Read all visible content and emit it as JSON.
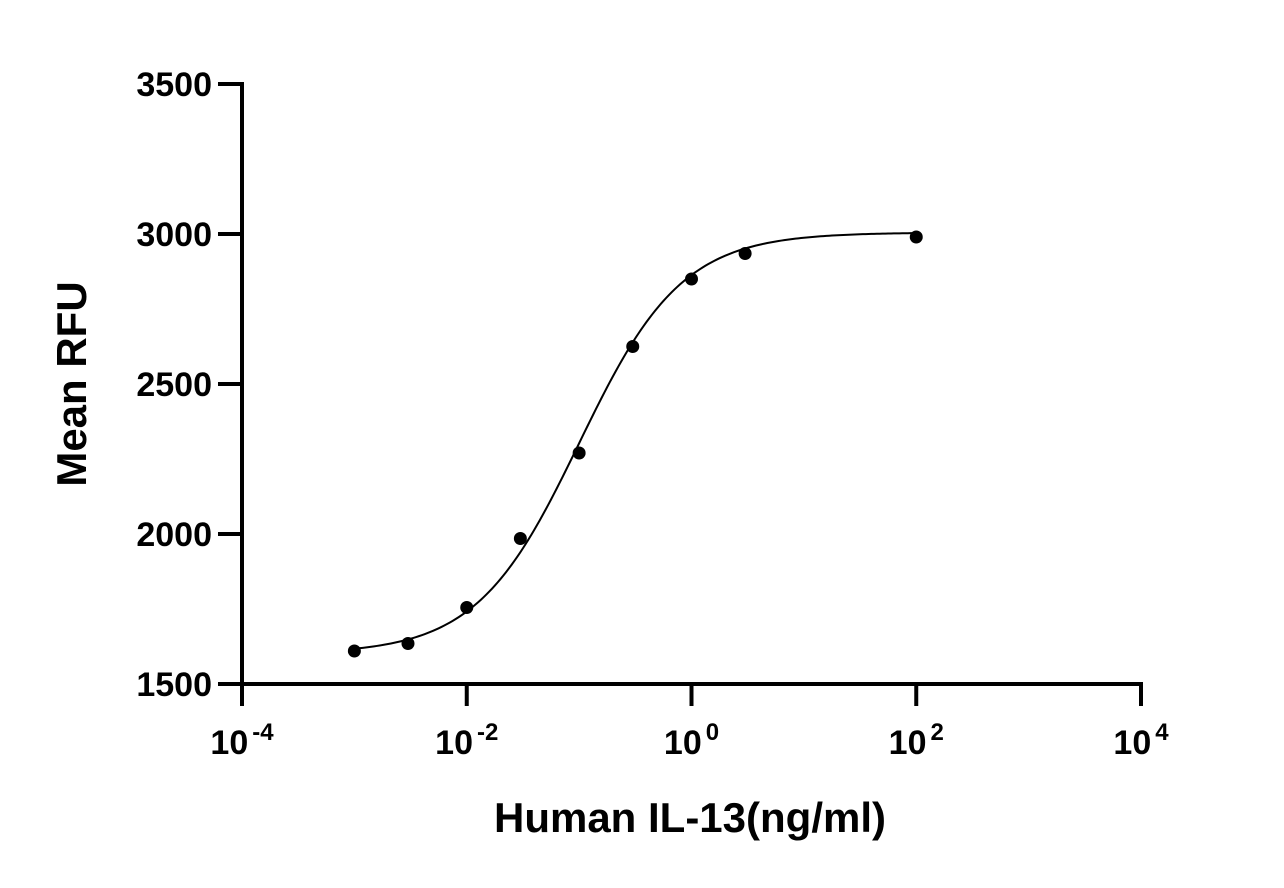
{
  "chart_data": {
    "type": "scatter",
    "title": "",
    "xlabel": "Human IL-13(ng/ml)",
    "ylabel": "Mean RFU",
    "x_scale": "log",
    "xlim": [
      0.0001,
      10000
    ],
    "ylim": [
      1500,
      3500
    ],
    "x_ticks": [
      {
        "value": 0.0001,
        "base": "10",
        "exp": "-4"
      },
      {
        "value": 0.01,
        "base": "10",
        "exp": "-2"
      },
      {
        "value": 1,
        "base": "10",
        "exp": "0"
      },
      {
        "value": 100,
        "base": "10",
        "exp": "2"
      },
      {
        "value": 10000,
        "base": "10",
        "exp": "4"
      }
    ],
    "y_ticks": [
      1500,
      2000,
      2500,
      3000,
      3500
    ],
    "y_tick_labels": [
      "1500",
      "2000",
      "2500",
      "3000",
      "3500"
    ],
    "grid": false,
    "legend": "none",
    "series": [
      {
        "x": [
          0.001,
          0.003,
          0.01,
          0.03,
          0.1,
          0.3,
          1,
          3,
          100
        ],
        "y": [
          1610,
          1635,
          1755,
          1985,
          2270,
          2625,
          2850,
          2935,
          2990
        ],
        "marker": "circle",
        "color": "#000000",
        "fit": {
          "model": "four-parameter logistic",
          "bottom": 1600,
          "top": 3005,
          "ec50": 0.1,
          "hill": 0.95
        }
      }
    ]
  }
}
